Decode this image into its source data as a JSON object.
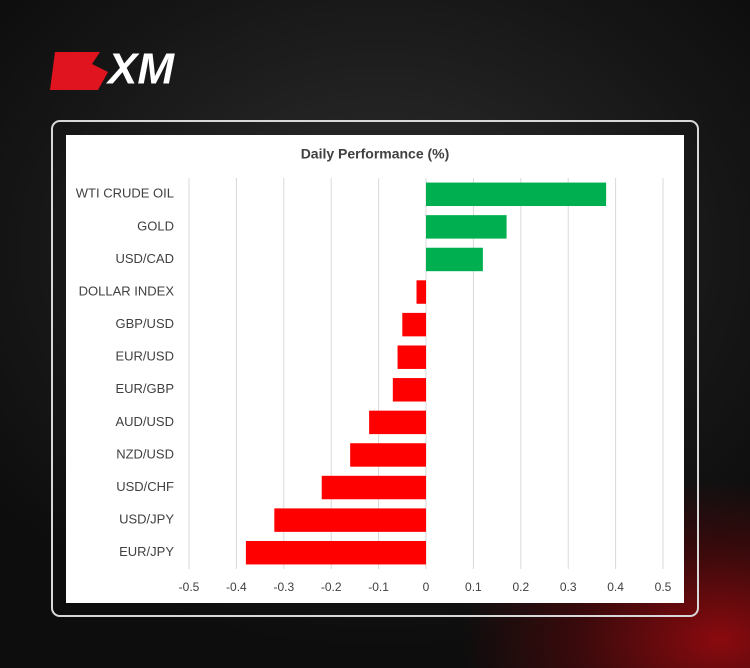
{
  "logo": "XM",
  "chart_data": {
    "type": "hbar",
    "title": "Daily Performance (%)",
    "categories": [
      "WTI CRUDE OIL",
      "GOLD",
      "USD/CAD",
      "DOLLAR INDEX",
      "GBP/USD",
      "EUR/USD",
      "EUR/GBP",
      "AUD/USD",
      "NZD/USD",
      "USD/CHF",
      "USD/JPY",
      "EUR/JPY"
    ],
    "values": [
      0.38,
      0.17,
      0.12,
      -0.02,
      -0.05,
      -0.06,
      -0.07,
      -0.12,
      -0.16,
      -0.22,
      -0.32,
      -0.38
    ],
    "positive_color": "#00b050",
    "negative_color": "#ff0000",
    "xlim": [
      -0.5,
      0.5
    ],
    "xticks": [
      -0.5,
      -0.4,
      -0.3,
      -0.2,
      -0.1,
      0,
      0.1,
      0.2,
      0.3,
      0.4,
      0.5
    ],
    "grid": true
  }
}
